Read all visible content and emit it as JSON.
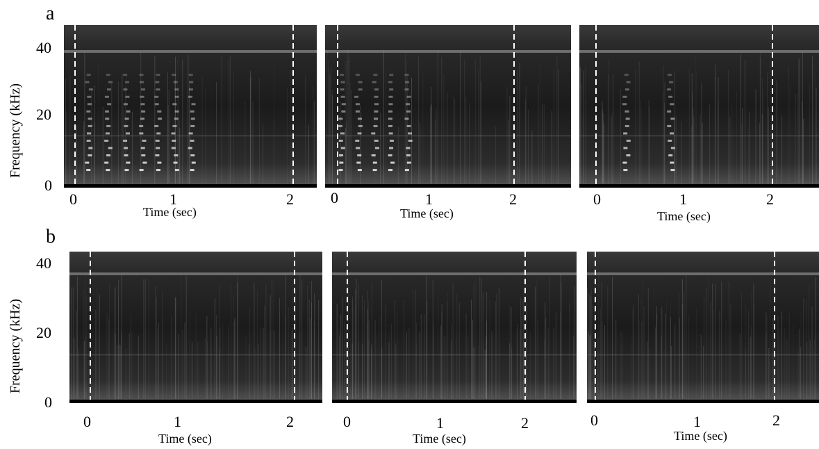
{
  "figure": {
    "rows": [
      {
        "letter": "a",
        "ylabel": "Frequency (kHz)",
        "yticks": [
          "40",
          "20",
          "0"
        ],
        "panels": [
          {
            "xticks": [
              "0",
              "1",
              "2"
            ],
            "xlabel": "Time (sec)"
          },
          {
            "xticks": [
              "0",
              "1",
              "2"
            ],
            "xlabel": "Time (sec)"
          },
          {
            "xticks": [
              "0",
              "1",
              "2"
            ],
            "xlabel": "Time (sec)"
          }
        ]
      },
      {
        "letter": "b",
        "ylabel": "Frequency (kHz)",
        "yticks": [
          "40",
          "20",
          "0"
        ],
        "panels": [
          {
            "xticks": [
              "0",
              "1",
              "2"
            ],
            "xlabel": "Time (sec)"
          },
          {
            "xticks": [
              "0",
              "1",
              "2"
            ],
            "xlabel": "Time (sec)"
          },
          {
            "xticks": [
              "0",
              "1",
              "2"
            ],
            "xlabel": "Time (sec)"
          }
        ]
      }
    ],
    "colors": {
      "background": "#1e1e1e",
      "harmonic_band": "#8a8a8a",
      "marker": "#ffffff"
    }
  }
}
